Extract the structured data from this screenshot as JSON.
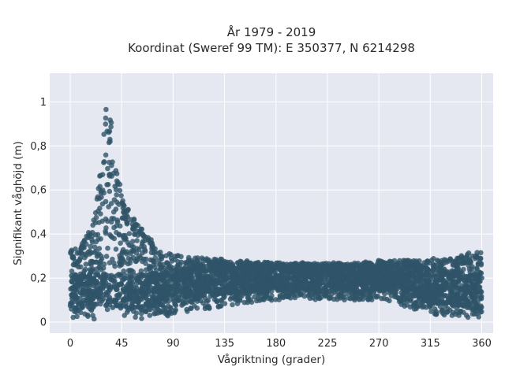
{
  "chart_data": {
    "type": "scatter",
    "title_line1": "År 1979 - 2019",
    "title_line2": "Koordinat (Sweref 99 TM): E 350377, N 6214298",
    "xlabel": "Vågriktning (grader)",
    "ylabel": "Signifikant våghöjd (m)",
    "xlim": [
      -18,
      370
    ],
    "ylim": [
      -0.05,
      1.13
    ],
    "xticks": [
      0,
      45,
      90,
      135,
      180,
      225,
      270,
      315,
      360
    ],
    "xtick_labels": [
      "0",
      "45",
      "90",
      "135",
      "180",
      "225",
      "270",
      "315",
      "360"
    ],
    "yticks": [
      0,
      0.2,
      0.4,
      0.6,
      0.8,
      1
    ],
    "ytick_labels": [
      "0",
      "0,2",
      "0,4",
      "0,6",
      "0,8",
      "1"
    ],
    "grid": true,
    "legend": "none",
    "colors": {
      "marker": "#2f5468",
      "plot_bg": "#e5e8f0",
      "grid": "#ffffff"
    },
    "envelope": {
      "direction": [
        0,
        10,
        20,
        25,
        30,
        32,
        35,
        40,
        45,
        50,
        55,
        60,
        70,
        80,
        90,
        100,
        120,
        150,
        180,
        210,
        240,
        270,
        300,
        320,
        340,
        350,
        360
      ],
      "max_height": [
        0.33,
        0.36,
        0.45,
        0.62,
        0.95,
        1.09,
        0.95,
        0.7,
        0.6,
        0.52,
        0.48,
        0.44,
        0.38,
        0.32,
        0.31,
        0.3,
        0.29,
        0.28,
        0.27,
        0.27,
        0.27,
        0.28,
        0.28,
        0.29,
        0.3,
        0.32,
        0.32
      ],
      "min_height": [
        0.01,
        0.01,
        0.01,
        0.01,
        0.01,
        0.01,
        0.01,
        0.01,
        0.01,
        0.01,
        0.01,
        0.01,
        0.02,
        0.02,
        0.03,
        0.04,
        0.06,
        0.08,
        0.1,
        0.1,
        0.1,
        0.1,
        0.06,
        0.03,
        0.02,
        0.01,
        0.01
      ]
    }
  }
}
